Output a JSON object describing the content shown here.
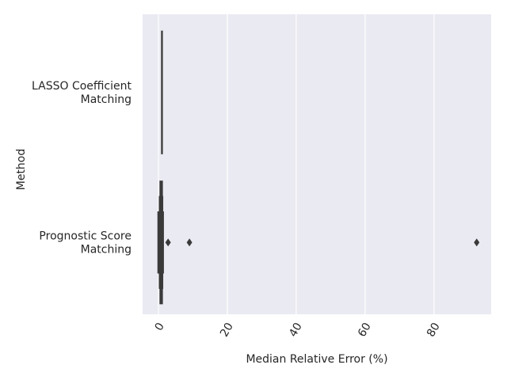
{
  "chart_data": {
    "type": "boxen",
    "xlabel": "Median Relative Error (%)",
    "ylabel": "Method",
    "categories": [
      "LASSO Coefficient\nMatching",
      "Prognostic Score\nMatching"
    ],
    "series": [
      {
        "name": "LASSO Coefficient\nMatching",
        "color": "#3a3a3a",
        "levels": [
          [
            0.85,
            1.05
          ]
        ],
        "outliers": []
      },
      {
        "name": "Prognostic Score\nMatching",
        "color": "#3a3a3a",
        "levels": [
          [
            0.4,
            1.2
          ],
          [
            0.2,
            1.3
          ],
          [
            -0.2,
            1.5
          ]
        ],
        "outliers": [
          2.8,
          9.0,
          92.4
        ]
      }
    ],
    "xlim": [
      -4.6,
      96.6
    ],
    "xticks": [
      0,
      20,
      40,
      60,
      80
    ],
    "grid": true
  }
}
